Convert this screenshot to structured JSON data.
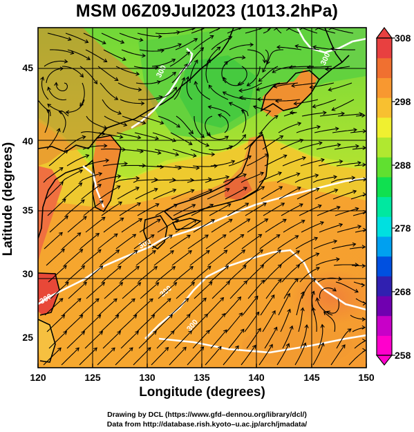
{
  "title": "MSM 06Z09Jul2023 (1013.2hPa)",
  "x_axis_label": "Longitude (degrees)",
  "y_axis_label": "Latitude  (degrees)",
  "x_ticks": [
    "120",
    "125",
    "130",
    "135",
    "140",
    "145",
    "150"
  ],
  "y_ticks": [
    "25",
    "30",
    "35",
    "40",
    "45"
  ],
  "colorbar_ticks": [
    "308",
    "298",
    "288",
    "278",
    "268",
    "258"
  ],
  "colorbar_colors": [
    "#ff00cc",
    "#c800c8",
    "#7000b0",
    "#3020b0",
    "#0050e0",
    "#00a0f0",
    "#00e0e0",
    "#00e8a0",
    "#10e050",
    "#60e030",
    "#b0e830",
    "#f0f030",
    "#f8c030",
    "#f89830",
    "#f07030",
    "#e84040"
  ],
  "credits": [
    "Drawing by DCL (https://www.gfd–dennou.org/library/dcl/)",
    "Data from http://database.rish.kyoto–u.ac.jp/arch/jmadata/"
  ],
  "contour_labels": [
    "300",
    "300",
    "300",
    "300",
    "300",
    "300"
  ],
  "chart_data": {
    "type": "map",
    "variable": "temperature (K) with streamlines",
    "level_hPa": 1013.2,
    "time": "06Z09Jul2023",
    "xlim": [
      120,
      150
    ],
    "ylim": [
      22.5,
      47.5
    ],
    "colorbar_range": [
      258,
      308
    ],
    "contour_value": 300
  }
}
